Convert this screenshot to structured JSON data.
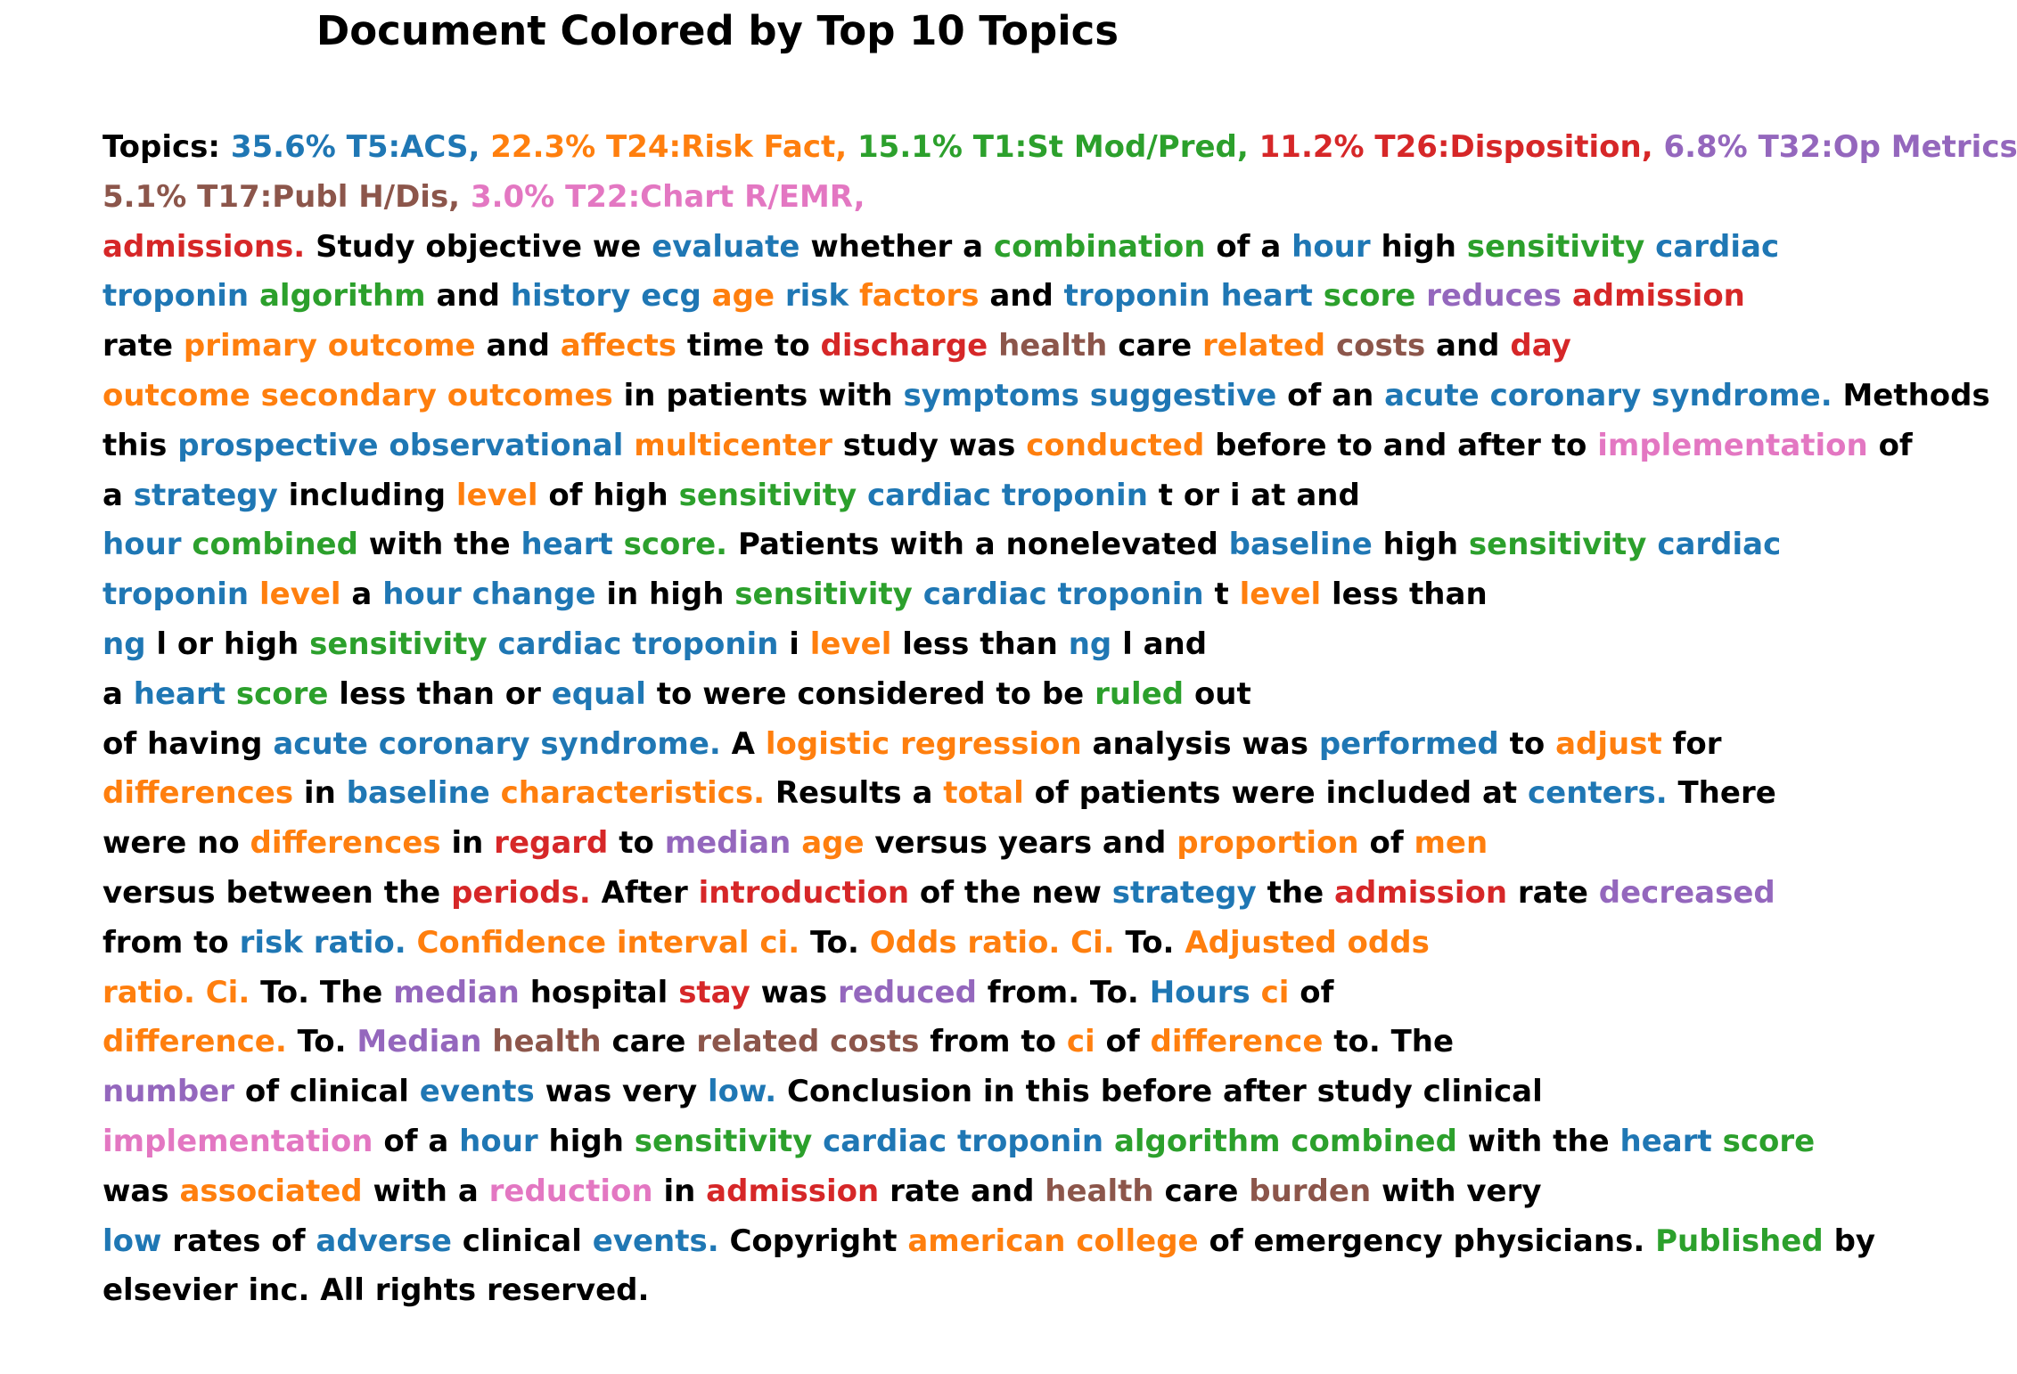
{
  "title": "Document Colored by Top 10 Topics",
  "palette": {
    "black": "#000000",
    "blue": "#1f77b4",
    "orange": "#ff7f0e",
    "green": "#2ca02c",
    "red": "#d62728",
    "purple": "#9467bd",
    "brown": "#8c564b",
    "pink": "#e377c2"
  },
  "lines": [
    [
      [
        "Topics:",
        "black"
      ],
      [
        "35.6% T5:ACS,",
        "blue"
      ],
      [
        "22.3% T24:Risk Fact,",
        "orange"
      ],
      [
        "15.1% T1:St Mod/Pred,",
        "green"
      ],
      [
        "11.2% T26:Disposition,",
        "red"
      ],
      [
        "6.8% T32:Op Metrics,",
        "purple"
      ]
    ],
    [
      [
        "5.1% T17:Publ H/Dis,",
        "brown"
      ],
      [
        "3.0% T22:Chart R/EMR,",
        "pink"
      ]
    ],
    [
      [
        "admissions.",
        "red"
      ],
      [
        "Study objective we",
        "black"
      ],
      [
        "evaluate",
        "blue"
      ],
      [
        "whether a",
        "black"
      ],
      [
        "combination",
        "green"
      ],
      [
        "of a",
        "black"
      ],
      [
        "hour",
        "blue"
      ],
      [
        "high",
        "black"
      ],
      [
        "sensitivity",
        "green"
      ],
      [
        "cardiac",
        "blue"
      ]
    ],
    [
      [
        "troponin",
        "blue"
      ],
      [
        "algorithm",
        "green"
      ],
      [
        "and",
        "black"
      ],
      [
        "history ecg",
        "blue"
      ],
      [
        "age",
        "orange"
      ],
      [
        "risk",
        "blue"
      ],
      [
        "factors",
        "orange"
      ],
      [
        "and",
        "black"
      ],
      [
        "troponin heart",
        "blue"
      ],
      [
        "score",
        "green"
      ],
      [
        "reduces",
        "purple"
      ],
      [
        "admission",
        "red"
      ]
    ],
    [
      [
        "rate",
        "black"
      ],
      [
        "primary outcome",
        "orange"
      ],
      [
        "and",
        "black"
      ],
      [
        "affects",
        "orange"
      ],
      [
        "time to",
        "black"
      ],
      [
        "discharge",
        "red"
      ],
      [
        "health",
        "brown"
      ],
      [
        "care",
        "black"
      ],
      [
        "related",
        "orange"
      ],
      [
        "costs",
        "brown"
      ],
      [
        "and",
        "black"
      ],
      [
        "day",
        "red"
      ]
    ],
    [
      [
        "outcome secondary outcomes",
        "orange"
      ],
      [
        "in patients with",
        "black"
      ],
      [
        "symptoms suggestive",
        "blue"
      ],
      [
        "of an",
        "black"
      ],
      [
        "acute coronary syndrome.",
        "blue"
      ],
      [
        "Methods",
        "black"
      ]
    ],
    [
      [
        "this",
        "black"
      ],
      [
        "prospective observational",
        "blue"
      ],
      [
        "multicenter",
        "orange"
      ],
      [
        "study was",
        "black"
      ],
      [
        "conducted",
        "orange"
      ],
      [
        "before to and after to",
        "black"
      ],
      [
        "implementation",
        "pink"
      ],
      [
        "of",
        "black"
      ]
    ],
    [
      [
        "a",
        "black"
      ],
      [
        "strategy",
        "blue"
      ],
      [
        "including",
        "black"
      ],
      [
        "level",
        "orange"
      ],
      [
        "of high",
        "black"
      ],
      [
        "sensitivity",
        "green"
      ],
      [
        "cardiac troponin",
        "blue"
      ],
      [
        "t or i at and",
        "black"
      ]
    ],
    [
      [
        "hour",
        "blue"
      ],
      [
        "combined",
        "green"
      ],
      [
        "with the",
        "black"
      ],
      [
        "heart",
        "blue"
      ],
      [
        "score.",
        "green"
      ],
      [
        "Patients with a nonelevated",
        "black"
      ],
      [
        "baseline",
        "blue"
      ],
      [
        "high",
        "black"
      ],
      [
        "sensitivity",
        "green"
      ],
      [
        "cardiac",
        "blue"
      ]
    ],
    [
      [
        "troponin",
        "blue"
      ],
      [
        "level",
        "orange"
      ],
      [
        "a",
        "black"
      ],
      [
        "hour change",
        "blue"
      ],
      [
        "in high",
        "black"
      ],
      [
        "sensitivity",
        "green"
      ],
      [
        "cardiac troponin",
        "blue"
      ],
      [
        "t",
        "black"
      ],
      [
        "level",
        "orange"
      ],
      [
        "less than",
        "black"
      ]
    ],
    [
      [
        "ng",
        "blue"
      ],
      [
        "l or high",
        "black"
      ],
      [
        "sensitivity",
        "green"
      ],
      [
        "cardiac troponin",
        "blue"
      ],
      [
        "i",
        "black"
      ],
      [
        "level",
        "orange"
      ],
      [
        "less than",
        "black"
      ],
      [
        "ng",
        "blue"
      ],
      [
        "l and",
        "black"
      ]
    ],
    [
      [
        "a",
        "black"
      ],
      [
        "heart",
        "blue"
      ],
      [
        "score",
        "green"
      ],
      [
        "less than or",
        "black"
      ],
      [
        "equal",
        "blue"
      ],
      [
        "to were considered to be",
        "black"
      ],
      [
        "ruled",
        "green"
      ],
      [
        "out",
        "black"
      ]
    ],
    [
      [
        "of having",
        "black"
      ],
      [
        "acute coronary syndrome.",
        "blue"
      ],
      [
        "A",
        "black"
      ],
      [
        "logistic regression",
        "orange"
      ],
      [
        "analysis was",
        "black"
      ],
      [
        "performed",
        "blue"
      ],
      [
        "to",
        "black"
      ],
      [
        "adjust",
        "orange"
      ],
      [
        "for",
        "black"
      ]
    ],
    [
      [
        "differences",
        "orange"
      ],
      [
        "in",
        "black"
      ],
      [
        "baseline",
        "blue"
      ],
      [
        "characteristics.",
        "orange"
      ],
      [
        "Results a",
        "black"
      ],
      [
        "total",
        "orange"
      ],
      [
        "of patients were included at",
        "black"
      ],
      [
        "centers.",
        "blue"
      ],
      [
        "There",
        "black"
      ]
    ],
    [
      [
        "were no",
        "black"
      ],
      [
        "differences",
        "orange"
      ],
      [
        "in",
        "black"
      ],
      [
        "regard",
        "red"
      ],
      [
        "to",
        "black"
      ],
      [
        "median",
        "purple"
      ],
      [
        "age",
        "orange"
      ],
      [
        "versus years and",
        "black"
      ],
      [
        "proportion",
        "orange"
      ],
      [
        "of",
        "black"
      ],
      [
        "men",
        "orange"
      ]
    ],
    [
      [
        "versus between the",
        "black"
      ],
      [
        "periods.",
        "red"
      ],
      [
        "After",
        "black"
      ],
      [
        "introduction",
        "red"
      ],
      [
        "of the new",
        "black"
      ],
      [
        "strategy",
        "blue"
      ],
      [
        "the",
        "black"
      ],
      [
        "admission",
        "red"
      ],
      [
        "rate",
        "black"
      ],
      [
        "decreased",
        "purple"
      ]
    ],
    [
      [
        "from to",
        "black"
      ],
      [
        "risk ratio.",
        "blue"
      ],
      [
        "Confidence interval ci.",
        "orange"
      ],
      [
        "To.",
        "black"
      ],
      [
        "Odds ratio. Ci.",
        "orange"
      ],
      [
        "To.",
        "black"
      ],
      [
        "Adjusted odds",
        "orange"
      ]
    ],
    [
      [
        "ratio. Ci.",
        "orange"
      ],
      [
        "To. The",
        "black"
      ],
      [
        "median",
        "purple"
      ],
      [
        "hospital",
        "black"
      ],
      [
        "stay",
        "red"
      ],
      [
        "was",
        "black"
      ],
      [
        "reduced",
        "purple"
      ],
      [
        "from. To.",
        "black"
      ],
      [
        "Hours",
        "blue"
      ],
      [
        "ci",
        "orange"
      ],
      [
        "of",
        "black"
      ]
    ],
    [
      [
        "difference.",
        "orange"
      ],
      [
        "To.",
        "black"
      ],
      [
        "Median",
        "purple"
      ],
      [
        "health",
        "brown"
      ],
      [
        "care",
        "black"
      ],
      [
        "related costs",
        "brown"
      ],
      [
        "from to",
        "black"
      ],
      [
        "ci",
        "orange"
      ],
      [
        "of",
        "black"
      ],
      [
        "difference",
        "orange"
      ],
      [
        "to. The",
        "black"
      ]
    ],
    [
      [
        "number",
        "purple"
      ],
      [
        "of clinical",
        "black"
      ],
      [
        "events",
        "blue"
      ],
      [
        "was very",
        "black"
      ],
      [
        "low.",
        "blue"
      ],
      [
        "Conclusion in this before after study clinical",
        "black"
      ]
    ],
    [
      [
        "implementation",
        "pink"
      ],
      [
        "of a",
        "black"
      ],
      [
        "hour",
        "blue"
      ],
      [
        "high",
        "black"
      ],
      [
        "sensitivity",
        "green"
      ],
      [
        "cardiac troponin",
        "blue"
      ],
      [
        "algorithm combined",
        "green"
      ],
      [
        "with the",
        "black"
      ],
      [
        "heart",
        "blue"
      ],
      [
        "score",
        "green"
      ]
    ],
    [
      [
        "was",
        "black"
      ],
      [
        "associated",
        "orange"
      ],
      [
        "with a",
        "black"
      ],
      [
        "reduction",
        "pink"
      ],
      [
        "in",
        "black"
      ],
      [
        "admission",
        "red"
      ],
      [
        "rate and",
        "black"
      ],
      [
        "health",
        "brown"
      ],
      [
        "care",
        "black"
      ],
      [
        "burden",
        "brown"
      ],
      [
        "with very",
        "black"
      ]
    ],
    [
      [
        "low",
        "blue"
      ],
      [
        "rates of",
        "black"
      ],
      [
        "adverse",
        "blue"
      ],
      [
        "clinical",
        "black"
      ],
      [
        "events.",
        "blue"
      ],
      [
        "Copyright",
        "black"
      ],
      [
        "american college",
        "orange"
      ],
      [
        "of emergency physicians.",
        "black"
      ],
      [
        "Published",
        "green"
      ],
      [
        "by",
        "black"
      ]
    ],
    [
      [
        "elsevier inc. All rights reserved.",
        "black"
      ]
    ]
  ]
}
